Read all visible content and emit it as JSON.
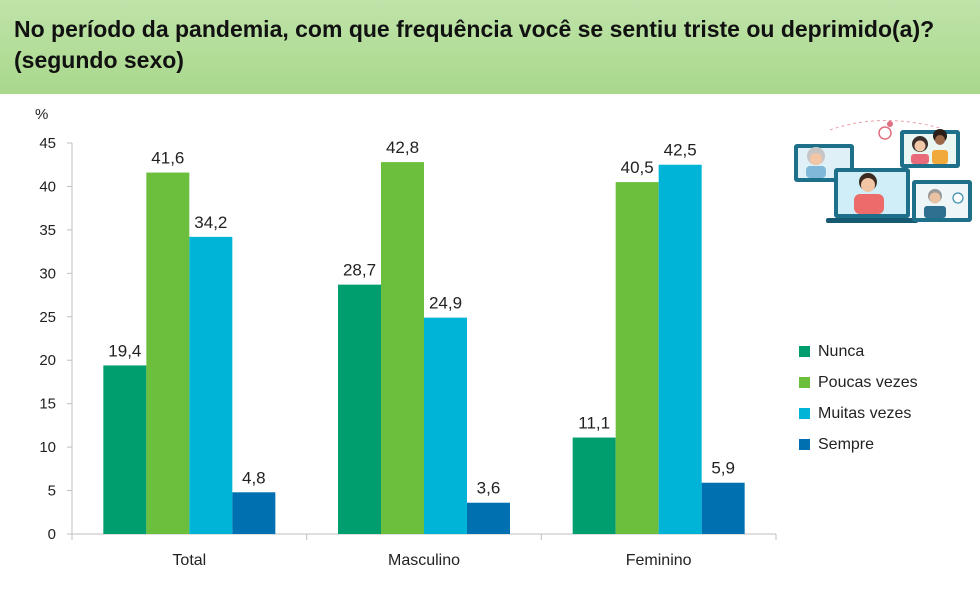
{
  "title": "No período da pandemia, com que frequência você se sentiu triste ou deprimido(a)? (segundo sexo)",
  "colors": {
    "nunca": "#009e6f",
    "poucas": "#6cbf3c",
    "muitas": "#00b4d8",
    "sempre": "#0070b0"
  },
  "chart_data": {
    "type": "bar",
    "title": "No período da pandemia, com que frequência você se sentiu triste ou deprimido(a)? (segundo sexo)",
    "ylabel": "%",
    "ylim": [
      0,
      45
    ],
    "yticks": [
      "0",
      "5",
      "10",
      "15",
      "20",
      "25",
      "30",
      "35",
      "40",
      "45"
    ],
    "categories": [
      "Total",
      "Masculino",
      "Feminino"
    ],
    "series": [
      {
        "name": "Nunca",
        "values": [
          19.4,
          28.7,
          11.1
        ],
        "labels": [
          "19,4",
          "28,7",
          "11,1"
        ]
      },
      {
        "name": "Poucas vezes",
        "values": [
          41.6,
          42.8,
          40.5
        ],
        "labels": [
          "41,6",
          "42,8",
          "40,5"
        ]
      },
      {
        "name": "Muitas vezes",
        "values": [
          34.2,
          24.9,
          42.5
        ],
        "labels": [
          "34,2",
          "24,9",
          "42,5"
        ]
      },
      {
        "name": "Sempre",
        "values": [
          4.8,
          3.6,
          5.9
        ],
        "labels": [
          "4,8",
          "3,6",
          "5,9"
        ]
      }
    ],
    "legend": "right",
    "grid": false
  }
}
